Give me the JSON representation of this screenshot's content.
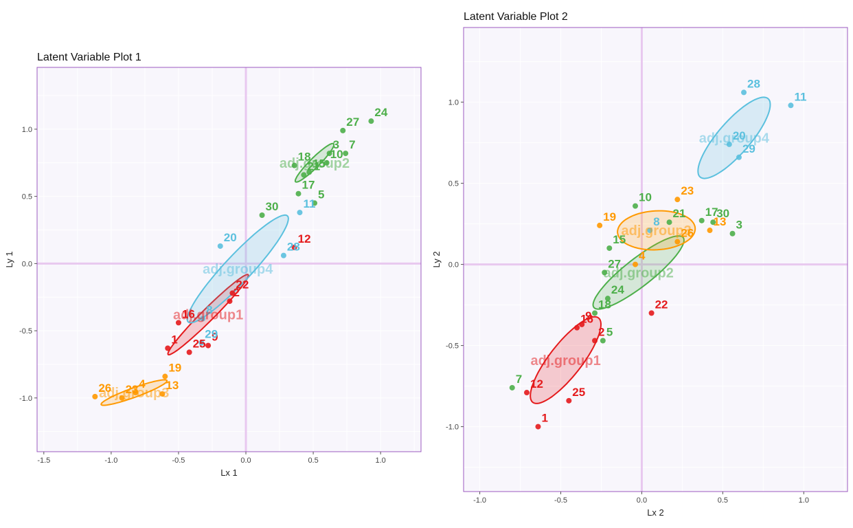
{
  "chart_data": [
    {
      "type": "scatter",
      "title": "Latent Variable Plot 1",
      "xlabel": "Lx 1",
      "ylabel": "Ly 1",
      "xlim": [
        -1.55,
        1.3
      ],
      "ylim": [
        -1.4,
        1.46
      ],
      "xticks": [
        -1.5,
        -1.0,
        -0.5,
        0.0,
        0.5,
        1.0
      ],
      "xtick_labels": [
        "-1.5",
        "-1.0",
        "-0.5",
        "0.0",
        "0.5",
        "1.0"
      ],
      "yticks": [
        -1.0,
        -0.5,
        0.0,
        0.5,
        1.0
      ],
      "ytick_labels": [
        "-1.0",
        "-0.5",
        "0.0",
        "0.5",
        "1.0"
      ],
      "reference_lines": {
        "x": 0,
        "y": 0
      },
      "groups": [
        {
          "name": "adj.group1",
          "color": "#e41a1c",
          "ellipse": {
            "center": [
              -0.28,
              -0.38
            ],
            "semi_major": 0.42,
            "semi_minor": 0.045,
            "angle_deg": 45
          },
          "points": [
            {
              "id": "1",
              "x": -0.58,
              "y": -0.63
            },
            {
              "id": "2",
              "x": -0.12,
              "y": -0.28
            },
            {
              "id": "9",
              "x": -0.28,
              "y": -0.61
            },
            {
              "id": "12",
              "x": 0.36,
              "y": 0.12
            },
            {
              "id": "16",
              "x": -0.5,
              "y": -0.44
            },
            {
              "id": "22",
              "x": -0.1,
              "y": -0.22
            },
            {
              "id": "25",
              "x": -0.42,
              "y": -0.66
            }
          ]
        },
        {
          "name": "adj.group2",
          "color": "#4daf4a",
          "ellipse": {
            "center": [
              0.51,
              0.75
            ],
            "semi_major": 0.2,
            "semi_minor": 0.035,
            "angle_deg": 45
          },
          "points": [
            {
              "id": "3",
              "x": 0.62,
              "y": 0.82
            },
            {
              "id": "5",
              "x": 0.51,
              "y": 0.45
            },
            {
              "id": "7",
              "x": 0.74,
              "y": 0.82
            },
            {
              "id": "10",
              "x": 0.6,
              "y": 0.75
            },
            {
              "id": "15",
              "x": 0.47,
              "y": 0.68
            },
            {
              "id": "17",
              "x": 0.39,
              "y": 0.52
            },
            {
              "id": "18",
              "x": 0.36,
              "y": 0.73
            },
            {
              "id": "21",
              "x": 0.43,
              "y": 0.66
            },
            {
              "id": "24",
              "x": 0.93,
              "y": 1.06
            },
            {
              "id": "27",
              "x": 0.72,
              "y": 0.99
            },
            {
              "id": "30",
              "x": 0.12,
              "y": 0.36
            }
          ]
        },
        {
          "name": "adj.group3",
          "color": "#ff9900",
          "ellipse": {
            "center": [
              -0.83,
              -0.96
            ],
            "semi_major": 0.26,
            "semi_minor": 0.035,
            "angle_deg": 20
          },
          "points": [
            {
              "id": "4",
              "x": -0.82,
              "y": -0.96
            },
            {
              "id": "13",
              "x": -0.62,
              "y": -0.97
            },
            {
              "id": "19",
              "x": -0.6,
              "y": -0.84
            },
            {
              "id": "23",
              "x": -0.92,
              "y": -1.0
            },
            {
              "id": "26",
              "x": -1.12,
              "y": -0.99
            }
          ]
        },
        {
          "name": "adj.group4",
          "color": "#5bc0de",
          "ellipse": {
            "center": [
              -0.06,
              -0.04
            ],
            "semi_major": 0.54,
            "semi_minor": 0.1,
            "angle_deg": 47
          },
          "points": [
            {
              "id": "8",
              "x": -0.32,
              "y": -0.41
            },
            {
              "id": "11",
              "x": 0.4,
              "y": 0.38
            },
            {
              "id": "20",
              "x": -0.19,
              "y": 0.13
            },
            {
              "id": "28",
              "x": 0.28,
              "y": 0.06
            },
            {
              "id": "29",
              "x": -0.33,
              "y": -0.59
            }
          ]
        }
      ]
    },
    {
      "type": "scatter",
      "title": "Latent Variable Plot 2",
      "xlabel": "Lx 2",
      "ylabel": "Ly 2",
      "xlim": [
        -1.1,
        1.27
      ],
      "ylim": [
        -1.4,
        1.46
      ],
      "xticks": [
        -1.0,
        -0.5,
        0.0,
        0.5,
        1.0
      ],
      "xtick_labels": [
        "-1.0",
        "-0.5",
        "0.0",
        "0.5",
        "1.0"
      ],
      "yticks": [
        -1.0,
        -0.5,
        0.0,
        0.5,
        1.0
      ],
      "ytick_labels": [
        "-1.0",
        "-0.5",
        "0.0",
        "0.5",
        "1.0"
      ],
      "reference_lines": {
        "x": 0,
        "y": 0
      },
      "groups": [
        {
          "name": "adj.group1",
          "color": "#e41a1c",
          "ellipse": {
            "center": [
              -0.47,
              -0.59
            ],
            "semi_major": 0.33,
            "semi_minor": 0.1,
            "angle_deg": 52
          },
          "points": [
            {
              "id": "1",
              "x": -0.64,
              "y": -1.0
            },
            {
              "id": "2",
              "x": -0.29,
              "y": -0.47
            },
            {
              "id": "9",
              "x": -0.37,
              "y": -0.37
            },
            {
              "id": "12",
              "x": -0.71,
              "y": -0.79
            },
            {
              "id": "16",
              "x": -0.4,
              "y": -0.39
            },
            {
              "id": "22",
              "x": 0.06,
              "y": -0.3
            },
            {
              "id": "25",
              "x": -0.45,
              "y": -0.84
            }
          ]
        },
        {
          "name": "adj.group2",
          "color": "#4daf4a",
          "ellipse": {
            "center": [
              -0.02,
              -0.05
            ],
            "semi_major": 0.35,
            "semi_minor": 0.085,
            "angle_deg": 38
          },
          "points": [
            {
              "id": "3",
              "x": 0.56,
              "y": 0.19
            },
            {
              "id": "5",
              "x": -0.24,
              "y": -0.47
            },
            {
              "id": "7",
              "x": -0.8,
              "y": -0.76
            },
            {
              "id": "10",
              "x": -0.04,
              "y": 0.36
            },
            {
              "id": "15",
              "x": -0.2,
              "y": 0.1
            },
            {
              "id": "17",
              "x": 0.37,
              "y": 0.27
            },
            {
              "id": "18",
              "x": -0.29,
              "y": -0.3
            },
            {
              "id": "21",
              "x": 0.17,
              "y": 0.26
            },
            {
              "id": "24",
              "x": -0.21,
              "y": -0.21
            },
            {
              "id": "27",
              "x": -0.23,
              "y": -0.05
            },
            {
              "id": "30",
              "x": 0.44,
              "y": 0.26
            }
          ]
        },
        {
          "name": "adj.group3",
          "color": "#ff9900",
          "ellipse": {
            "center": [
              0.09,
              0.21
            ],
            "semi_major": 0.24,
            "semi_minor": 0.12,
            "angle_deg": 3
          },
          "points": [
            {
              "id": "4",
              "x": -0.04,
              "y": 0.0
            },
            {
              "id": "13",
              "x": 0.42,
              "y": 0.21
            },
            {
              "id": "19",
              "x": -0.26,
              "y": 0.24
            },
            {
              "id": "23",
              "x": 0.22,
              "y": 0.4
            },
            {
              "id": "26",
              "x": 0.22,
              "y": 0.14
            }
          ]
        },
        {
          "name": "adj.group4",
          "color": "#5bc0de",
          "ellipse": {
            "center": [
              0.57,
              0.78
            ],
            "semi_major": 0.32,
            "semi_minor": 0.1,
            "angle_deg": 49
          },
          "points": [
            {
              "id": "8",
              "x": 0.05,
              "y": 0.21
            },
            {
              "id": "11",
              "x": 0.92,
              "y": 0.98
            },
            {
              "id": "20",
              "x": 0.54,
              "y": 0.74
            },
            {
              "id": "28",
              "x": 0.63,
              "y": 1.06
            },
            {
              "id": "29",
              "x": 0.6,
              "y": 0.66
            }
          ]
        }
      ]
    }
  ]
}
